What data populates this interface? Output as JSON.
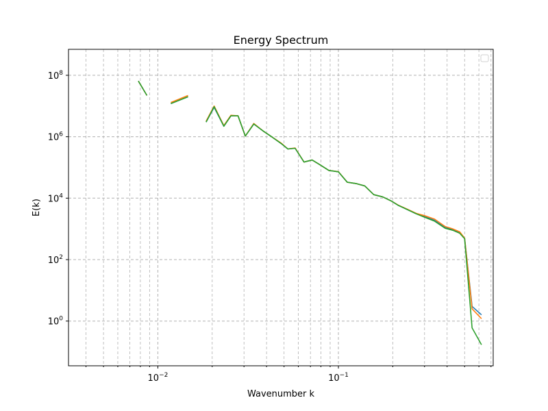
{
  "chart_data": {
    "type": "line",
    "title": "Energy Spectrum",
    "xlabel": "Wavenumber k",
    "ylabel": "E(k)",
    "xscale": "log",
    "yscale": "log",
    "xlim": [
      0.0032,
      0.72
    ],
    "ylim": [
      0.035,
      700000000
    ],
    "grid": true,
    "legend": "top-right",
    "x_ticks": [
      {
        "value": 0.01,
        "base": "10",
        "exp": "−2"
      },
      {
        "value": 0.1,
        "base": "10",
        "exp": "−1"
      }
    ],
    "y_ticks": [
      {
        "value": 1,
        "base": "10",
        "exp": "0"
      },
      {
        "value": 100,
        "base": "10",
        "exp": "2"
      },
      {
        "value": 10000,
        "base": "10",
        "exp": "4"
      },
      {
        "value": 1000000,
        "base": "10",
        "exp": "6"
      },
      {
        "value": 100000000,
        "base": "10",
        "exp": "8"
      }
    ],
    "x": [
      0.0078,
      0.0087,
      0.0108,
      0.0118,
      0.0147,
      0.0166,
      0.0185,
      0.0205,
      0.0232,
      0.0254,
      0.0278,
      0.0305,
      0.034,
      0.0385,
      0.0432,
      0.0482,
      0.0525,
      0.0576,
      0.0645,
      0.0715,
      0.0795,
      0.0885,
      0.1,
      0.112,
      0.125,
      0.14,
      0.157,
      0.176,
      0.197,
      0.215,
      0.24,
      0.27,
      0.3,
      0.34,
      0.39,
      0.43,
      0.47,
      0.5,
      0.55,
      0.62
    ],
    "series": [
      {
        "color": "#1f77b4",
        "values": [
          65000000,
          22000000,
          null,
          12000000,
          20000000,
          null,
          3000000,
          9000000,
          2200000,
          4800000,
          4800000,
          1050000,
          2600000,
          1500000,
          950000,
          600000,
          400000,
          420000,
          150000,
          175000,
          120000,
          80000,
          72000,
          33000,
          30000,
          25000,
          13000,
          11000,
          8000,
          5800,
          4300,
          3100,
          2500,
          1900,
          1100,
          950,
          750,
          500,
          3,
          1.6
        ]
      },
      {
        "color": "#ff7f0e",
        "values": [
          65000000,
          22000000,
          null,
          13000000,
          22000000,
          null,
          3200000,
          10000000,
          2300000,
          5000000,
          4800000,
          1050000,
          2700000,
          1500000,
          950000,
          620000,
          400000,
          430000,
          150000,
          175000,
          120000,
          80000,
          73000,
          33000,
          30000,
          25000,
          13000,
          11000,
          8000,
          5900,
          4400,
          3200,
          2700,
          2100,
          1200,
          1000,
          800,
          500,
          2.5,
          1.2
        ]
      },
      {
        "color": "#2ca02c",
        "values": [
          65000000,
          22000000,
          null,
          12000000,
          20000000,
          null,
          3000000,
          9500000,
          2200000,
          4800000,
          4800000,
          1050000,
          2600000,
          1500000,
          950000,
          600000,
          400000,
          420000,
          150000,
          175000,
          120000,
          80000,
          72000,
          33000,
          30000,
          25000,
          13000,
          11000,
          8000,
          5800,
          4300,
          3100,
          2400,
          1800,
          1050,
          900,
          720,
          480,
          0.6,
          0.17
        ]
      }
    ]
  }
}
